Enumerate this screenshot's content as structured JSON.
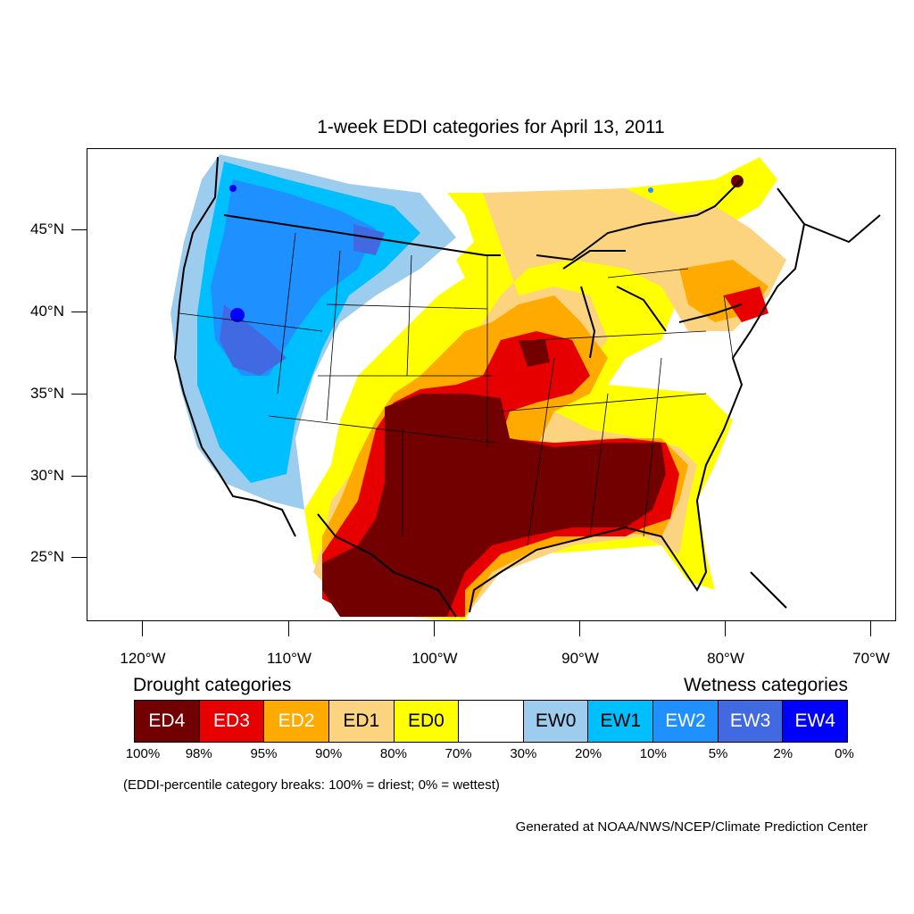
{
  "title": "1-week EDDI categories for April 13, 2011",
  "lat_labels": [
    "45°N",
    "40°N",
    "35°N",
    "30°N",
    "25°N"
  ],
  "lon_labels": [
    "120°W",
    "110°W",
    "100°W",
    "90°W",
    "80°W",
    "70°W"
  ],
  "legend": {
    "drought_heading": "Drought categories",
    "wetness_heading": "Wetness categories",
    "categories": [
      {
        "label": "ED4",
        "color": "#730000",
        "text_color": "#ffffff"
      },
      {
        "label": "ED3",
        "color": "#e60000",
        "text_color": "#ffffff"
      },
      {
        "label": "ED2",
        "color": "#ffaa00",
        "text_color": "#ffffff"
      },
      {
        "label": "ED1",
        "color": "#fcd37f",
        "text_color": "#000000"
      },
      {
        "label": "ED0",
        "color": "#ffff00",
        "text_color": "#000000"
      },
      {
        "label": "",
        "color": "#ffffff",
        "text_color": "#000000"
      },
      {
        "label": "EW0",
        "color": "#9dcdee",
        "text_color": "#000000"
      },
      {
        "label": "EW1",
        "color": "#00bfff",
        "text_color": "#000000"
      },
      {
        "label": "EW2",
        "color": "#1e90ff",
        "text_color": "#ffffff"
      },
      {
        "label": "EW3",
        "color": "#4169e1",
        "text_color": "#ffffff"
      },
      {
        "label": "EW4",
        "color": "#0000ff",
        "text_color": "#ffffff"
      }
    ],
    "breaks": [
      "100%",
      "98%",
      "95%",
      "90%",
      "80%",
      "70%",
      "30%",
      "20%",
      "10%",
      "5%",
      "2%",
      "0%"
    ],
    "note": "(EDDI-percentile category breaks: 100% = driest; 0% = wettest)"
  },
  "credit": "Generated at NOAA/NWS/NCEP/Climate Prediction Center"
}
